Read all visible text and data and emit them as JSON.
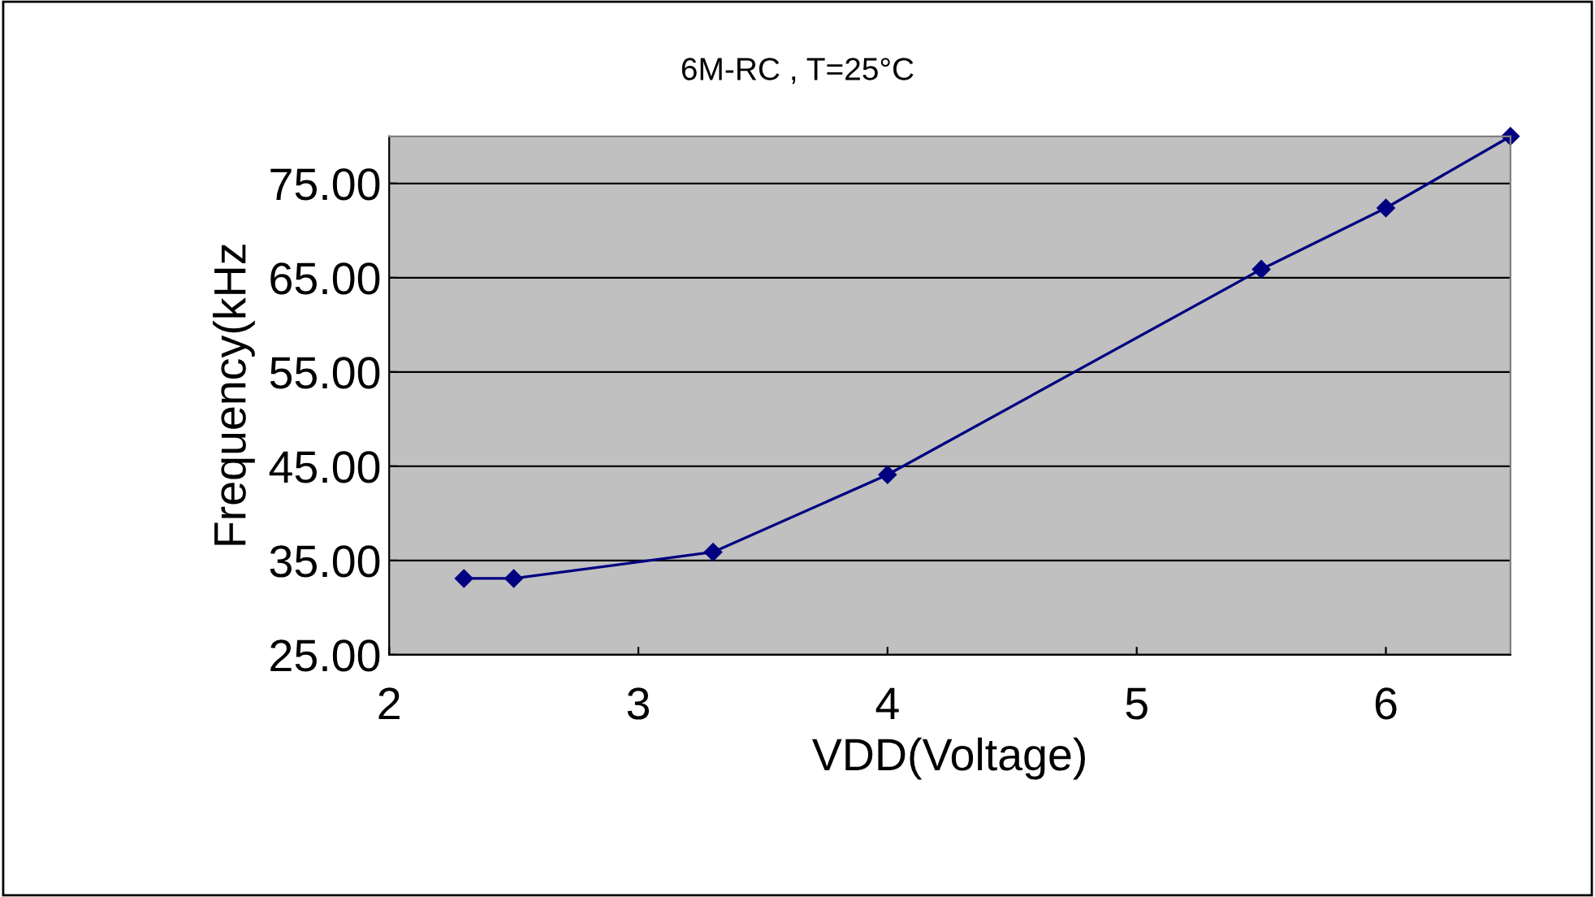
{
  "chart_data": {
    "type": "line",
    "title": "6M-RC , T=25°C",
    "xlabel": "VDD(Voltage)",
    "ylabel": "Frequency(kHz",
    "x": [
      2.3,
      2.5,
      3.3,
      4.0,
      5.5,
      6.0,
      6.5
    ],
    "series": [
      {
        "color": "#000080",
        "values": [
          33.1,
          33.1,
          35.9,
          44.1,
          65.9,
          72.4,
          80.0
        ]
      }
    ],
    "xlim": [
      2,
      6.5
    ],
    "xticks": [
      2,
      3,
      4,
      5,
      6
    ],
    "ylim": [
      25,
      80
    ],
    "yticks": [
      {
        "value": 25,
        "label": "25.00"
      },
      {
        "value": 35,
        "label": "35.00"
      },
      {
        "value": 45,
        "label": "45.00"
      },
      {
        "value": 55,
        "label": "55.00"
      },
      {
        "value": 65,
        "label": "65.00"
      },
      {
        "value": 75,
        "label": "75.00"
      }
    ],
    "grid": "y",
    "marker": "diamond",
    "line_style": "solid"
  }
}
